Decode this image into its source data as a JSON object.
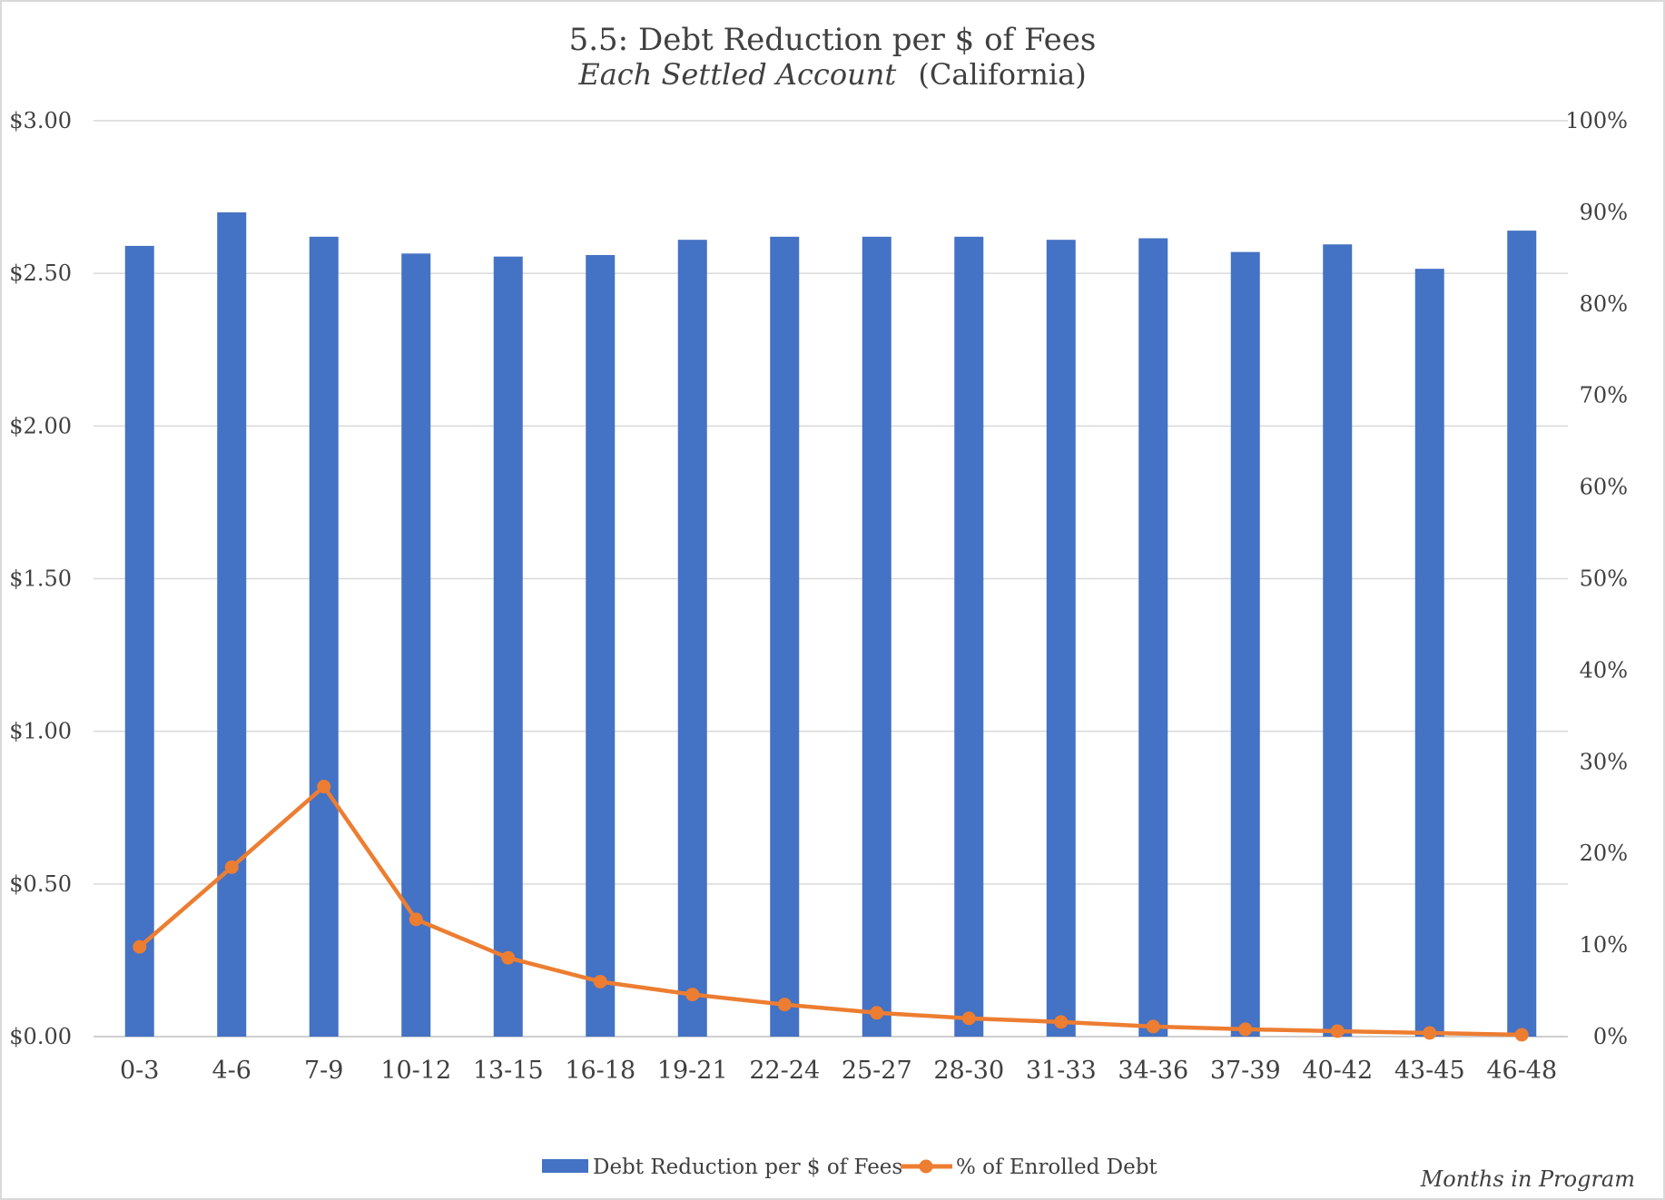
{
  "chart_data": {
    "type": "bar",
    "title": "5.5: Debt Reduction per $ of Fees",
    "subtitle_italic": "Each Settled Account",
    "subtitle_rest": "(California)",
    "xlabel": "Months in Program",
    "categories": [
      "0-3",
      "4-6",
      "7-9",
      "10-12",
      "13-15",
      "16-18",
      "19-21",
      "22-24",
      "25-27",
      "28-30",
      "31-33",
      "34-36",
      "37-39",
      "40-42",
      "43-45",
      "46-48"
    ],
    "series": [
      {
        "name": "Debt Reduction per $ of Fees",
        "type": "bar",
        "axis": "left",
        "color": "#4472C4",
        "values": [
          2.59,
          2.7,
          2.62,
          2.565,
          2.555,
          2.56,
          2.61,
          2.62,
          2.62,
          2.62,
          2.61,
          2.615,
          2.57,
          2.595,
          2.515,
          2.64
        ]
      },
      {
        "name": "% of Enrolled Debt",
        "type": "line",
        "axis": "right",
        "color": "#ED7D31",
        "values": [
          9.8,
          18.5,
          27.3,
          12.8,
          8.6,
          6.0,
          4.6,
          3.5,
          2.6,
          2.0,
          1.6,
          1.1,
          0.8,
          0.6,
          0.4,
          0.2
        ]
      }
    ],
    "y_left": {
      "ylim": [
        0,
        3
      ],
      "ticks": [
        "$0.00",
        "$0.50",
        "$1.00",
        "$1.50",
        "$2.00",
        "$2.50",
        "$3.00"
      ]
    },
    "y_right": {
      "ylim": [
        0,
        100
      ],
      "ticks": [
        "0%",
        "10%",
        "20%",
        "30%",
        "40%",
        "50%",
        "60%",
        "70%",
        "80%",
        "90%",
        "100%"
      ]
    },
    "grid": true,
    "legend_position": "bottom"
  }
}
